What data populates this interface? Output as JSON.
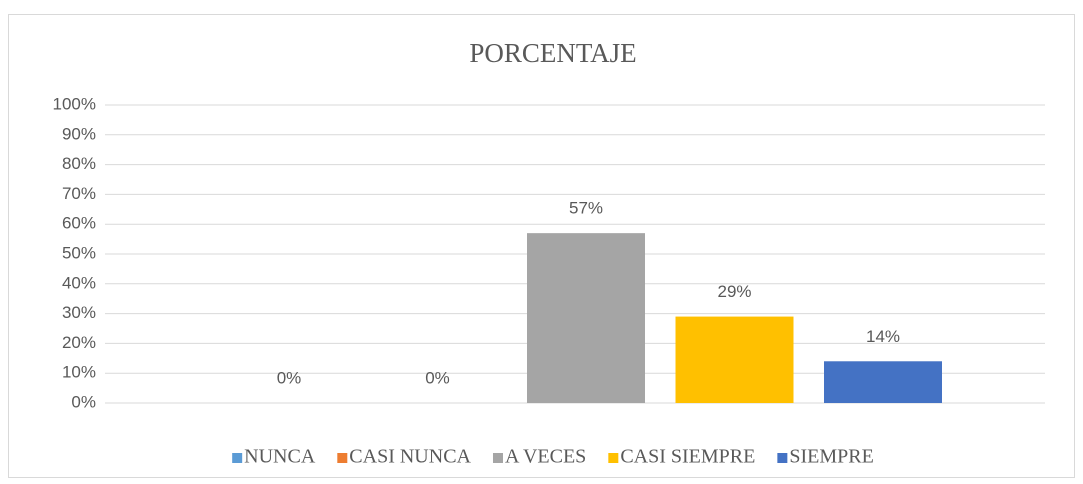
{
  "chart_data": {
    "type": "bar",
    "title": "PORCENTAJE",
    "categories": [
      null
    ],
    "series": [
      {
        "name": "NUNCA",
        "color": "#5b9bd5",
        "values": [
          0
        ],
        "value_labels": [
          "0%"
        ]
      },
      {
        "name": "CASI NUNCA",
        "color": "#ed7d31",
        "values": [
          0
        ],
        "value_labels": [
          "0%"
        ]
      },
      {
        "name": "A VECES",
        "color": "#a5a5a5",
        "values": [
          57
        ],
        "value_labels": [
          "57%"
        ]
      },
      {
        "name": "CASI SIEMPRE",
        "color": "#ffc000",
        "values": [
          29
        ],
        "value_labels": [
          "29%"
        ]
      },
      {
        "name": "SIEMPRE",
        "color": "#4472c4",
        "values": [
          14
        ],
        "value_labels": [
          "14%"
        ]
      }
    ],
    "ylim": [
      0,
      100
    ],
    "yticks": [
      {
        "value": 0,
        "label": "0%"
      },
      {
        "value": 10,
        "label": "10%"
      },
      {
        "value": 20,
        "label": "20%"
      },
      {
        "value": 30,
        "label": "30%"
      },
      {
        "value": 40,
        "label": "40%"
      },
      {
        "value": 50,
        "label": "50%"
      },
      {
        "value": 60,
        "label": "60%"
      },
      {
        "value": 70,
        "label": "70%"
      },
      {
        "value": 80,
        "label": "80%"
      },
      {
        "value": 90,
        "label": "90%"
      },
      {
        "value": 100,
        "label": "100%"
      }
    ],
    "grid": true,
    "legend": "bottom"
  }
}
